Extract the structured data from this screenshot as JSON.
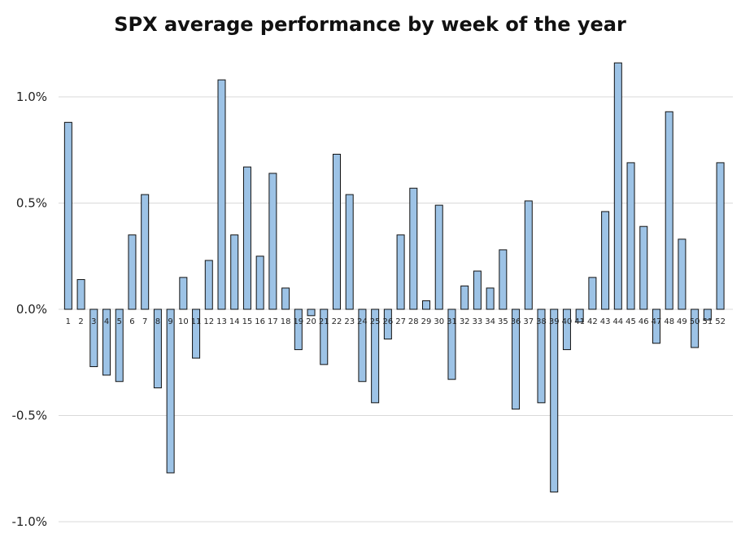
{
  "chart_data": {
    "type": "bar",
    "title": "SPX average performance by week of the year",
    "xlabel": "",
    "ylabel": "",
    "categories": [
      "1",
      "2",
      "3",
      "4",
      "5",
      "6",
      "7",
      "8",
      "9",
      "10",
      "11",
      "12",
      "13",
      "14",
      "15",
      "16",
      "17",
      "18",
      "19",
      "20",
      "21",
      "22",
      "23",
      "24",
      "25",
      "26",
      "27",
      "28",
      "29",
      "30",
      "31",
      "32",
      "33",
      "34",
      "35",
      "36",
      "37",
      "38",
      "39",
      "40",
      "41",
      "42",
      "43",
      "44",
      "45",
      "46",
      "47",
      "48",
      "49",
      "50",
      "51",
      "52"
    ],
    "values": [
      0.88,
      0.14,
      -0.27,
      -0.31,
      -0.34,
      0.35,
      0.54,
      -0.37,
      -0.77,
      0.15,
      -0.23,
      0.23,
      1.08,
      0.35,
      0.67,
      0.25,
      0.64,
      0.1,
      -0.19,
      -0.03,
      -0.26,
      0.73,
      0.54,
      -0.34,
      -0.44,
      -0.14,
      0.35,
      0.57,
      0.04,
      0.49,
      -0.33,
      0.11,
      0.18,
      0.1,
      0.28,
      -0.47,
      0.51,
      -0.44,
      -0.86,
      -0.19,
      -0.06,
      0.15,
      0.46,
      1.16,
      0.69,
      0.39,
      -0.16,
      0.93,
      0.33,
      -0.18,
      -0.05,
      0.69
    ],
    "ylim": [
      -1.0,
      1.2
    ],
    "yticks": [
      -1.0,
      -0.5,
      0.0,
      0.5,
      1.0
    ],
    "ytick_labels": [
      "-1.0%",
      "-0.5%",
      "0.0%",
      "0.5%",
      "1.0%"
    ],
    "grid": true,
    "legend": "none",
    "bar_color": "#9dc3e6",
    "bar_edge_color": "#111111",
    "grid_color": "#d9d9d9"
  }
}
